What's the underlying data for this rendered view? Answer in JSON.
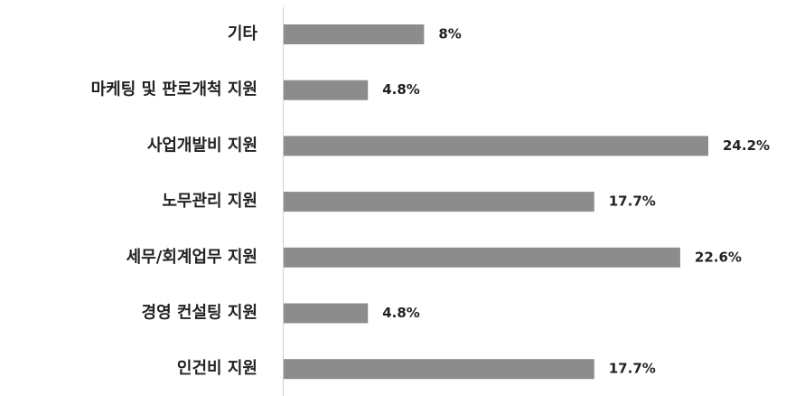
{
  "chart_data": {
    "type": "bar",
    "orientation": "horizontal",
    "categories": [
      "기타",
      "마케팅 및 판로개척 지원",
      "사업개발비 지원",
      "노무관리 지원",
      "세무/회계업무 지원",
      "경영 컨설팅 지원",
      "인건비 지원"
    ],
    "values": [
      8,
      4.8,
      24.2,
      17.7,
      22.6,
      4.8,
      17.7
    ],
    "value_labels": [
      "8%",
      "4.8%",
      "24.2%",
      "17.7%",
      "22.6%",
      "4.8%",
      "17.7%"
    ],
    "color": "#8c8c8c"
  }
}
